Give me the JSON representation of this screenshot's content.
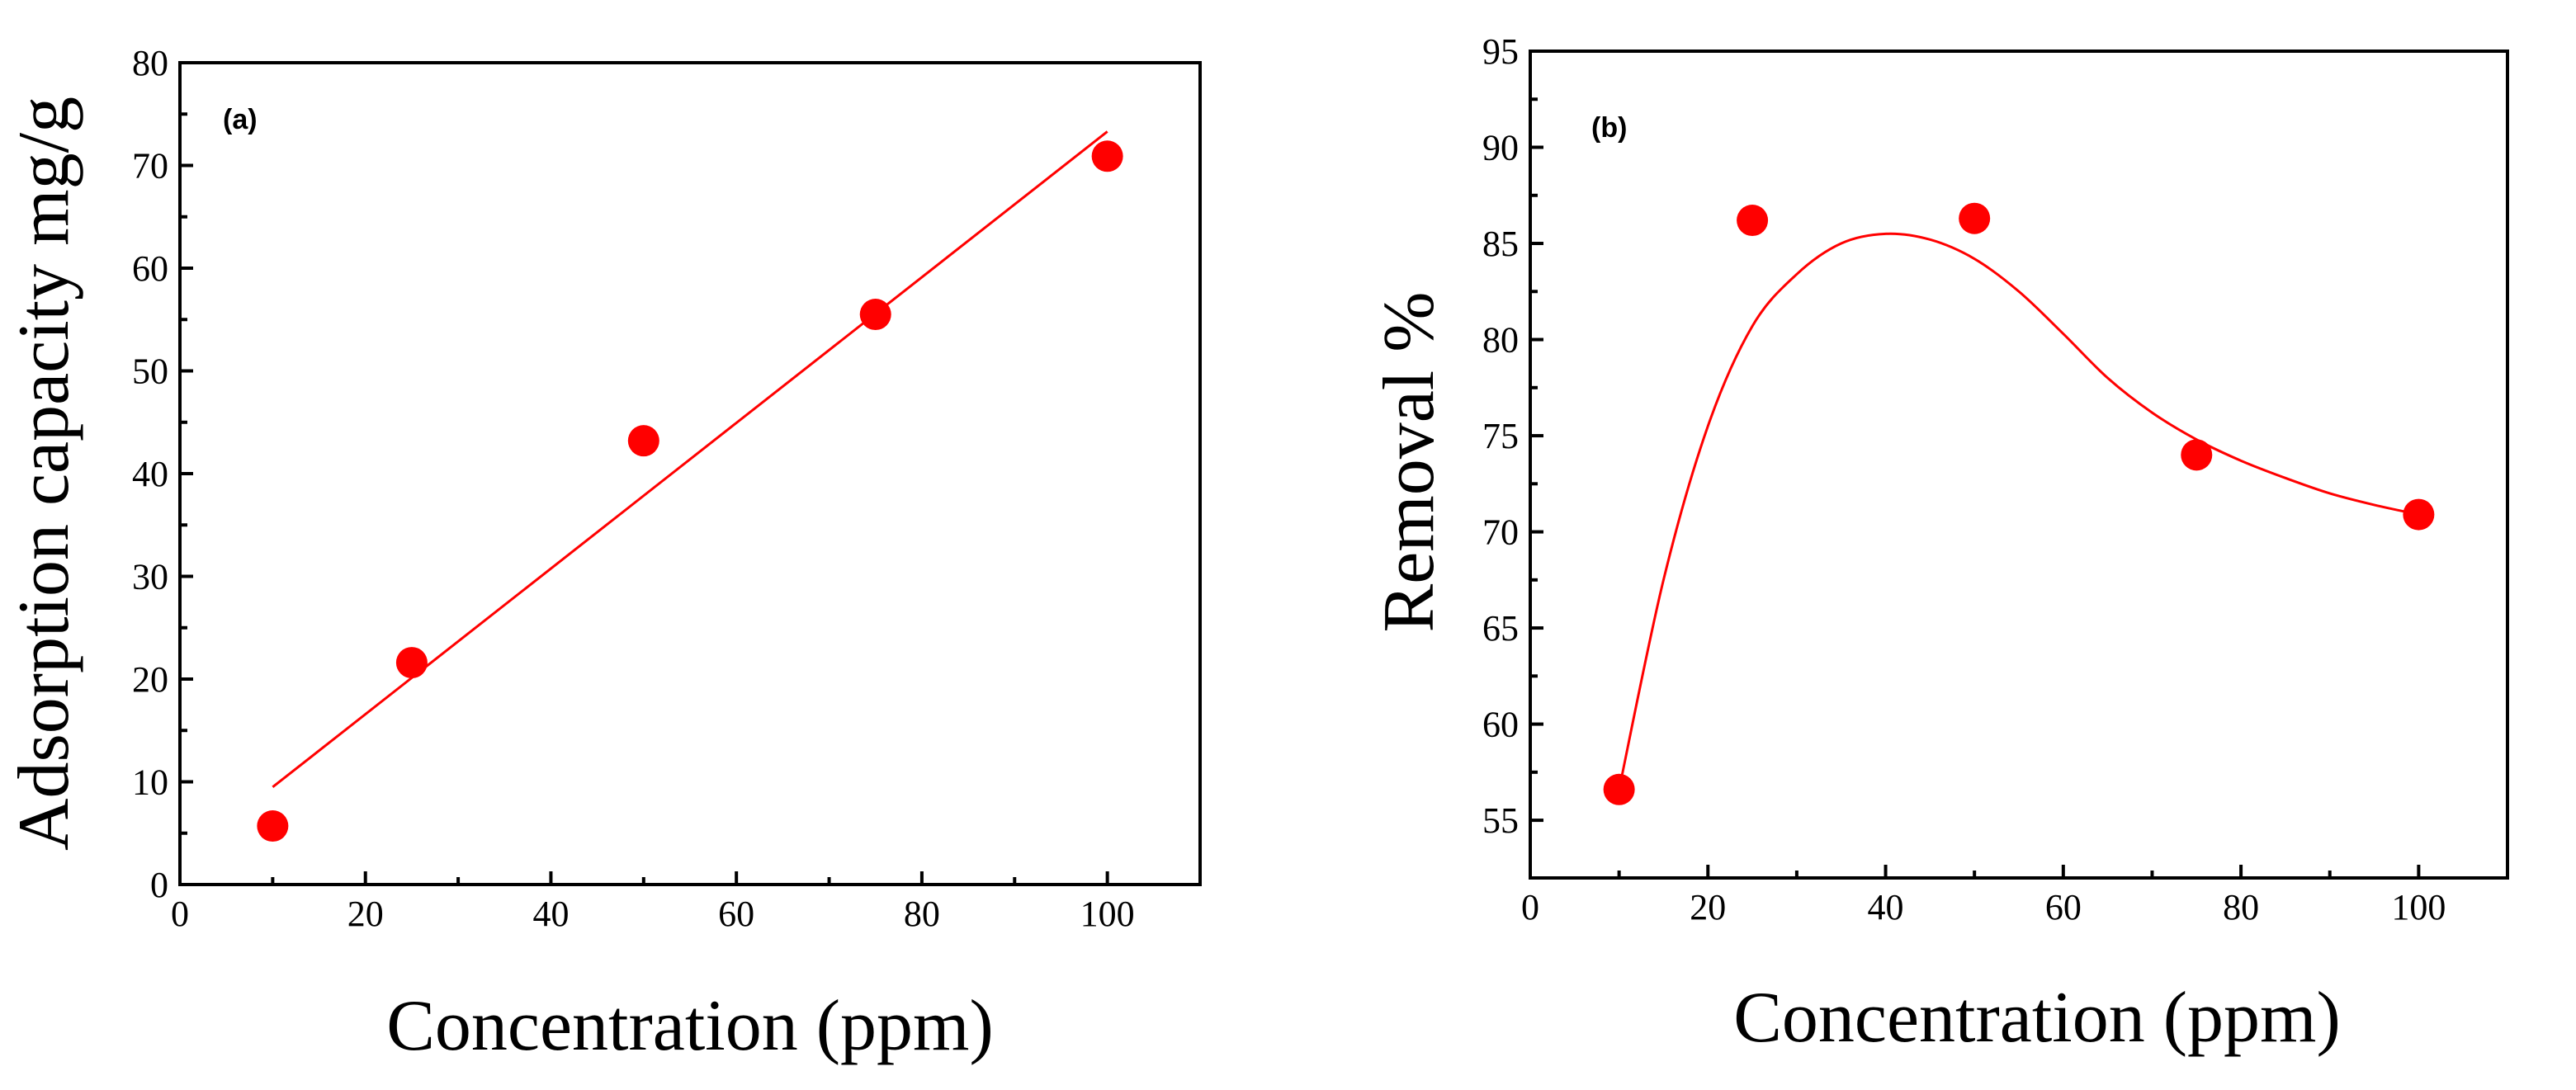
{
  "colors": {
    "marker": "#ff0000",
    "fit_line": "#ff0000",
    "axis": "#000000"
  },
  "chart_data": [
    {
      "type": "scatter",
      "panel_label": "(a)",
      "xlabel": "Concentration (ppm)",
      "ylabel": "Adsorption capacity mg/g",
      "xlim": [
        0,
        110
      ],
      "ylim": [
        0,
        80
      ],
      "xticks": [
        0,
        20,
        40,
        60,
        80,
        100
      ],
      "yticks": [
        0,
        10,
        20,
        30,
        40,
        50,
        60,
        70,
        80
      ],
      "series": [
        {
          "name": "data",
          "x": [
            10,
            25,
            50,
            75,
            100
          ],
          "y": [
            5.7,
            21.6,
            43.2,
            55.5,
            70.9
          ]
        }
      ],
      "fit": {
        "kind": "linear",
        "x_range": [
          10,
          100
        ],
        "slope": 0.709,
        "intercept": 2.4
      }
    },
    {
      "type": "scatter",
      "panel_label": "(b)",
      "xlabel": "Concentration (ppm)",
      "ylabel": "Removal %",
      "xlim": [
        0,
        110
      ],
      "ylim": [
        52,
        95
      ],
      "xticks": [
        0,
        20,
        40,
        60,
        80,
        100
      ],
      "yticks": [
        55,
        60,
        65,
        70,
        75,
        80,
        85,
        90,
        95
      ],
      "series": [
        {
          "name": "data",
          "x": [
            10,
            25,
            50,
            75,
            100
          ],
          "y": [
            56.6,
            86.2,
            86.3,
            74.0,
            70.9
          ]
        }
      ],
      "fit": {
        "kind": "smooth",
        "x": [
          10,
          15,
          20,
          25,
          30,
          35,
          40,
          45,
          50,
          55,
          60,
          65,
          70,
          75,
          80,
          85,
          90,
          95,
          100
        ],
        "y": [
          56.6,
          67.5,
          75.5,
          80.7,
          83.4,
          85.0,
          85.5,
          85.2,
          84.2,
          82.5,
          80.3,
          78.0,
          76.2,
          74.8,
          73.7,
          72.8,
          72.0,
          71.4,
          70.9
        ]
      }
    }
  ]
}
